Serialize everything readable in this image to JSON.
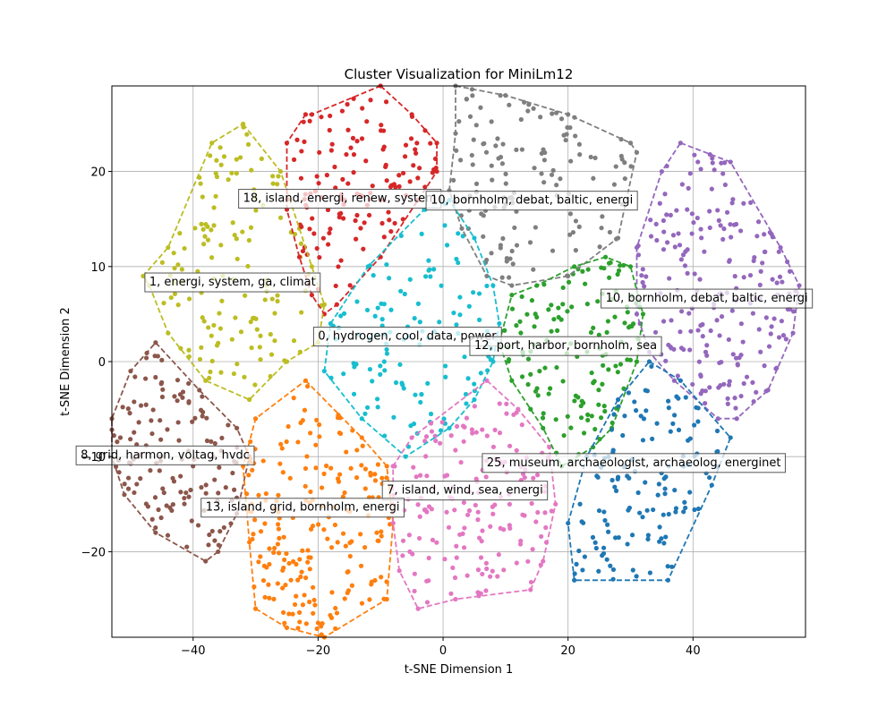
{
  "chart_data": {
    "type": "scatter",
    "title": "Cluster Visualization for MiniLm12",
    "xlabel": "t-SNE Dimension 1",
    "ylabel": "t-SNE Dimension 2",
    "xlim": [
      -53,
      58
    ],
    "ylim": [
      -29,
      29
    ],
    "xticks": [
      -40,
      -20,
      0,
      20,
      40
    ],
    "yticks": [
      -20,
      -10,
      0,
      10,
      20
    ],
    "grid": true,
    "clusters": [
      {
        "id": "olive",
        "color": "#bcbd22",
        "n": 130,
        "hull": [
          [
            -32,
            25
          ],
          [
            -26,
            20
          ],
          [
            -23,
            14
          ],
          [
            -21,
            10
          ],
          [
            -19,
            6
          ],
          [
            -20,
            2
          ],
          [
            -25,
            0
          ],
          [
            -31,
            -4
          ],
          [
            -38,
            -2
          ],
          [
            -44,
            3
          ],
          [
            -47,
            8
          ],
          [
            -48,
            9
          ],
          [
            -44,
            12
          ],
          [
            -37,
            23
          ]
        ]
      },
      {
        "id": "red",
        "color": "#d62728",
        "n": 130,
        "hull": [
          [
            -10,
            29
          ],
          [
            -5,
            26
          ],
          [
            -1,
            23
          ],
          [
            -1,
            20
          ],
          [
            -4,
            17
          ],
          [
            -10,
            11
          ],
          [
            -17,
            6
          ],
          [
            -19,
            5
          ],
          [
            -21,
            7
          ],
          [
            -23,
            11
          ],
          [
            -25,
            16
          ],
          [
            -25,
            23
          ],
          [
            -22,
            26
          ],
          [
            -21,
            26
          ]
        ]
      },
      {
        "id": "gray",
        "color": "#7f7f7f",
        "n": 130,
        "hull": [
          [
            2,
            29
          ],
          [
            10,
            28
          ],
          [
            20,
            26
          ],
          [
            30,
            23
          ],
          [
            31,
            22
          ],
          [
            28,
            13
          ],
          [
            20,
            9
          ],
          [
            11,
            8
          ],
          [
            7,
            9
          ],
          [
            3,
            14
          ],
          [
            1,
            18
          ],
          [
            2,
            24
          ]
        ]
      },
      {
        "id": "purple",
        "color": "#9467bd",
        "n": 200,
        "hull": [
          [
            38,
            23
          ],
          [
            46,
            21
          ],
          [
            54,
            12
          ],
          [
            57,
            8
          ],
          [
            56,
            3
          ],
          [
            52,
            -3
          ],
          [
            47,
            -6
          ],
          [
            44,
            -6
          ],
          [
            37,
            -2
          ],
          [
            33,
            1
          ],
          [
            31,
            5
          ],
          [
            31,
            12
          ],
          [
            35,
            20
          ]
        ]
      },
      {
        "id": "cyan",
        "color": "#17becf",
        "n": 120,
        "hull": [
          [
            -3,
            16
          ],
          [
            1,
            17
          ],
          [
            5,
            13
          ],
          [
            8,
            8
          ],
          [
            9,
            4
          ],
          [
            8,
            0
          ],
          [
            5,
            -4
          ],
          [
            1,
            -7
          ],
          [
            -6,
            -10
          ],
          [
            -13,
            -6
          ],
          [
            -19,
            -1
          ],
          [
            -18,
            4
          ],
          [
            -12,
            10
          ]
        ]
      },
      {
        "id": "green",
        "color": "#2ca02c",
        "n": 130,
        "hull": [
          [
            11,
            7
          ],
          [
            15,
            8
          ],
          [
            21,
            10
          ],
          [
            26,
            11
          ],
          [
            30,
            10
          ],
          [
            32,
            5
          ],
          [
            31,
            0
          ],
          [
            27,
            -7
          ],
          [
            24,
            -9
          ],
          [
            19,
            -11
          ],
          [
            16,
            -7
          ],
          [
            14,
            -5
          ],
          [
            11,
            -2
          ],
          [
            9,
            2
          ]
        ]
      },
      {
        "id": "brown",
        "color": "#8c564b",
        "n": 130,
        "hull": [
          [
            -46,
            2
          ],
          [
            -39,
            -3
          ],
          [
            -33,
            -7
          ],
          [
            -31,
            -10
          ],
          [
            -33,
            -16
          ],
          [
            -36,
            -20
          ],
          [
            -38,
            -21
          ],
          [
            -46,
            -18
          ],
          [
            -51,
            -14
          ],
          [
            -53,
            -10
          ],
          [
            -53,
            -6
          ],
          [
            -50,
            -1
          ]
        ]
      },
      {
        "id": "orange",
        "color": "#ff7f0e",
        "n": 200,
        "hull": [
          [
            -22,
            -2
          ],
          [
            -13,
            -8
          ],
          [
            -9,
            -11
          ],
          [
            -8,
            -17
          ],
          [
            -9,
            -25
          ],
          [
            -19,
            -29
          ],
          [
            -25,
            -28
          ],
          [
            -30,
            -26
          ],
          [
            -31,
            -19
          ],
          [
            -32,
            -11
          ],
          [
            -30,
            -6
          ]
        ]
      },
      {
        "id": "pink",
        "color": "#e377c2",
        "n": 160,
        "hull": [
          [
            7,
            -2
          ],
          [
            12,
            -5
          ],
          [
            17,
            -9
          ],
          [
            18,
            -15
          ],
          [
            16,
            -21
          ],
          [
            14,
            -24
          ],
          [
            2,
            -25
          ],
          [
            -4,
            -26
          ],
          [
            -7,
            -22
          ],
          [
            -8,
            -17
          ],
          [
            -8,
            -11
          ],
          [
            -5,
            -8
          ]
        ]
      },
      {
        "id": "blue",
        "color": "#1f77b4",
        "n": 130,
        "hull": [
          [
            33,
            0
          ],
          [
            38,
            -2
          ],
          [
            46,
            -8
          ],
          [
            43,
            -13
          ],
          [
            36,
            -23
          ],
          [
            21,
            -23
          ],
          [
            20,
            -17
          ],
          [
            23,
            -10
          ],
          [
            28,
            -4
          ]
        ]
      }
    ],
    "annotations": [
      {
        "text": "18, island, energi, renew, system",
        "x": -32,
        "y": 16.8
      },
      {
        "text": "10, bornholm, debat, baltic, energi",
        "x": -2,
        "y": 16.6
      },
      {
        "text": "1, energi, system, ga, climat",
        "x": -47,
        "y": 8
      },
      {
        "text": "10, bornholm, debat, baltic, energi",
        "x": 26,
        "y": 6.3
      },
      {
        "text": "0, hydrogen, cool, data, power",
        "x": -20,
        "y": 2.3
      },
      {
        "text": "12, port, harbor, bornholm, sea",
        "x": 5,
        "y": 1.3
      },
      {
        "text": "8, grid, harmon, voltag, hvdc",
        "x": -58,
        "y": -10.2
      },
      {
        "text": "25, museum, archaeologist, archaeolog, energinet",
        "x": 7,
        "y": -11
      },
      {
        "text": "7, island, wind, sea, energi",
        "x": -9,
        "y": -13.9
      },
      {
        "text": "13, island, grid, bornholm, energi",
        "x": -38,
        "y": -15.7
      }
    ]
  }
}
